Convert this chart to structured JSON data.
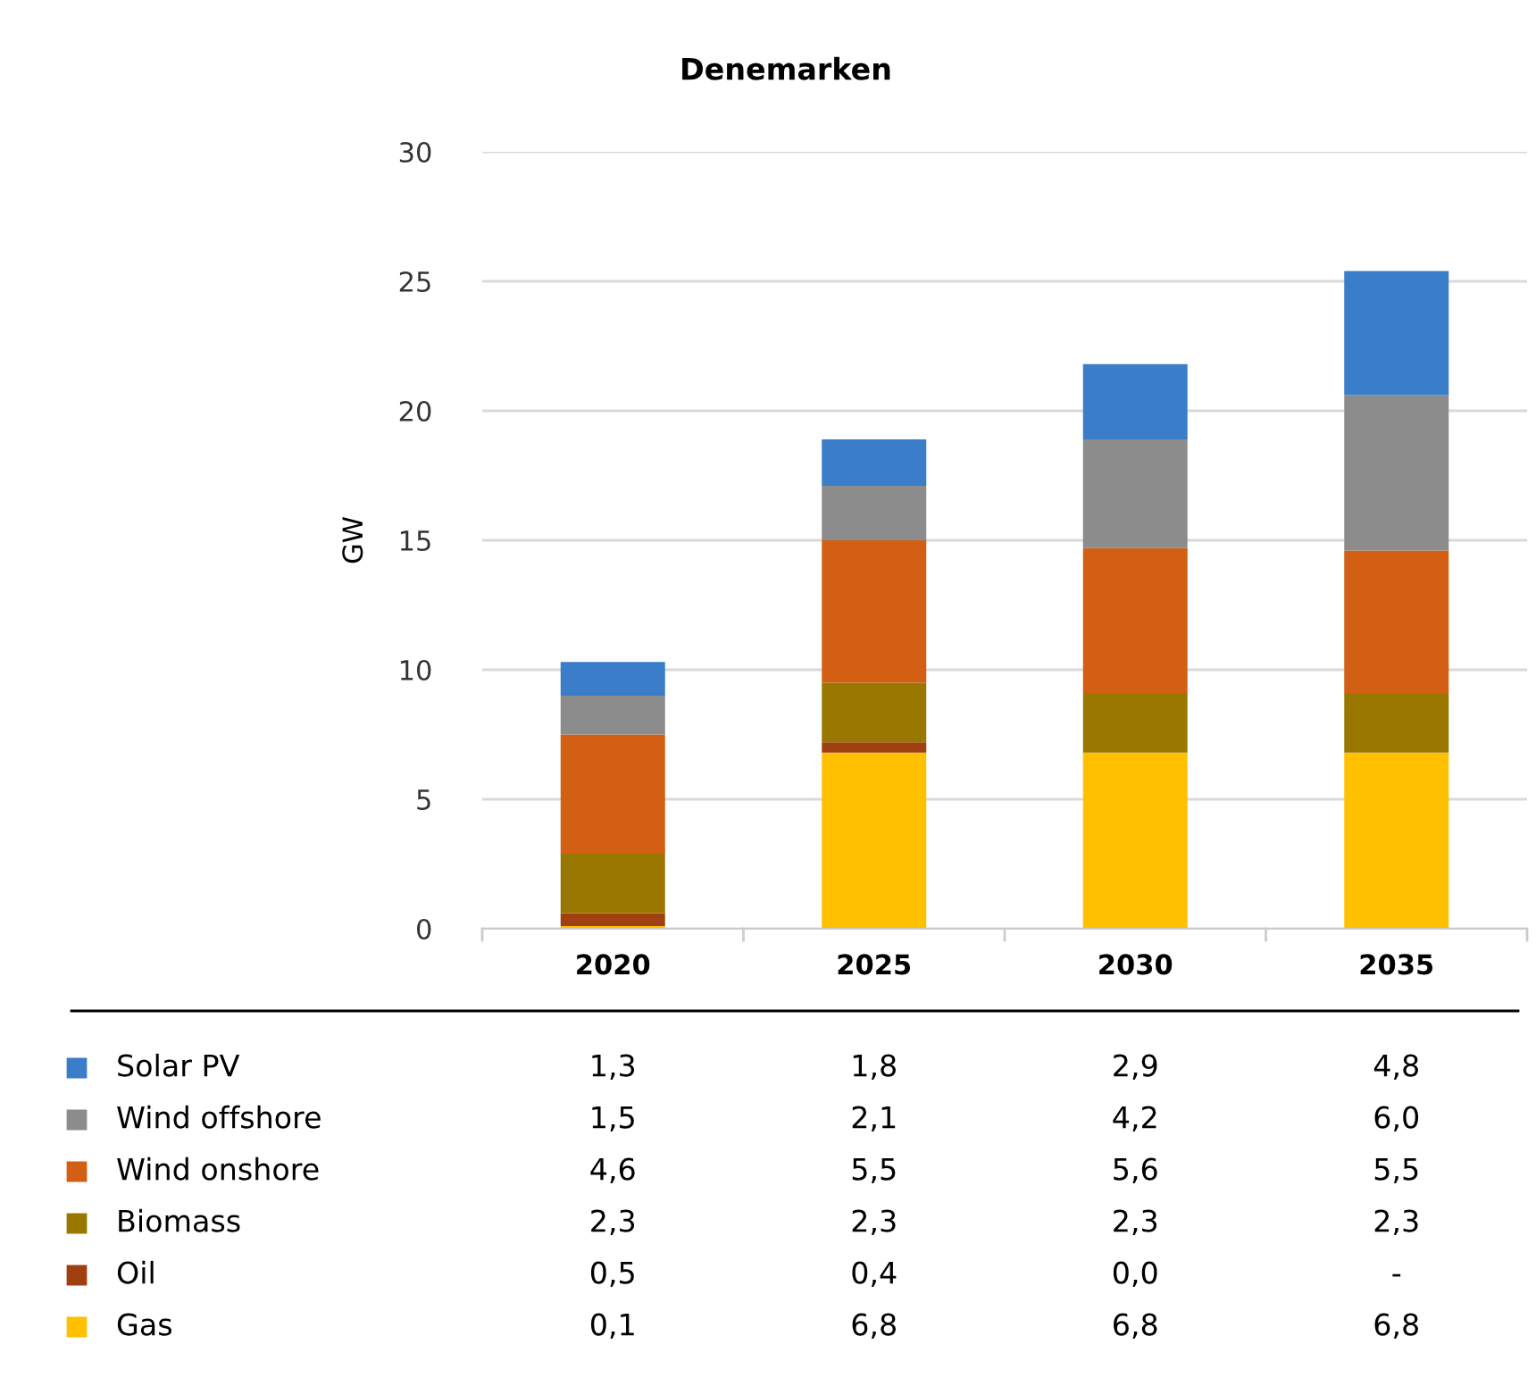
{
  "chart_data": {
    "type": "bar",
    "title": "Denemarken",
    "ylabel": "GW",
    "stacked": true,
    "categories": [
      "2020",
      "2025",
      "2030",
      "2035"
    ],
    "series": [
      {
        "name": "Gas",
        "color": "#ffc000",
        "values": [
          0.1,
          6.8,
          6.8,
          6.8
        ],
        "value_labels": [
          "0,1",
          "6,8",
          "6,8",
          "6,8"
        ]
      },
      {
        "name": "Oil",
        "color": "#a04010",
        "values": [
          0.5,
          0.4,
          0.0,
          null
        ],
        "value_labels": [
          "0,5",
          "0,4",
          "0,0",
          "-"
        ]
      },
      {
        "name": "Biomass",
        "color": "#9a7800",
        "values": [
          2.3,
          2.3,
          2.3,
          2.3
        ],
        "value_labels": [
          "2,3",
          "2,3",
          "2,3",
          "2,3"
        ]
      },
      {
        "name": "Wind onshore",
        "color": "#d35f14",
        "values": [
          4.6,
          5.5,
          5.6,
          5.5
        ],
        "value_labels": [
          "4,6",
          "5,5",
          "5,6",
          "5,5"
        ]
      },
      {
        "name": "Wind offshore",
        "color": "#8c8c8c",
        "values": [
          1.5,
          2.1,
          4.2,
          6.0
        ],
        "value_labels": [
          "1,5",
          "2,1",
          "4,2",
          "6,0"
        ]
      },
      {
        "name": "Solar PV",
        "color": "#3a7dc9",
        "values": [
          1.3,
          1.8,
          2.9,
          4.8
        ],
        "value_labels": [
          "1,3",
          "1,8",
          "2,9",
          "4,8"
        ]
      }
    ],
    "ylim": [
      0,
      30
    ],
    "yticks": [
      0,
      5,
      10,
      15,
      20,
      25,
      30
    ],
    "grid": "y",
    "legend": "bottom"
  }
}
